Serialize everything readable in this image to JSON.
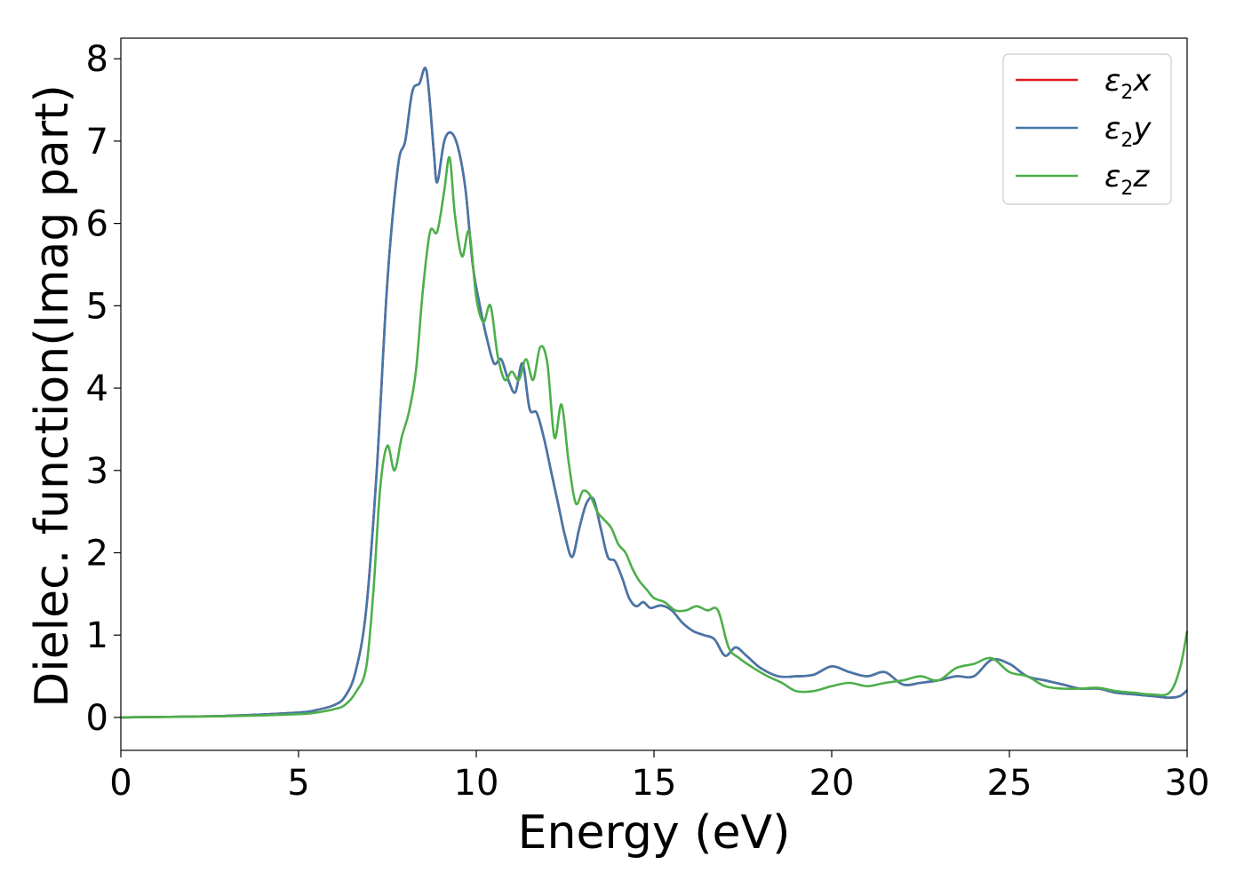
{
  "chart_data": {
    "type": "line",
    "title": "",
    "xlabel": "Energy (eV)",
    "ylabel": "Dielec. function(Imag part)",
    "xlim": [
      0,
      30
    ],
    "ylim": [
      -0.4,
      8.25
    ],
    "xticks": [
      "0",
      "5",
      "10",
      "15",
      "20",
      "25",
      "30"
    ],
    "yticks": [
      "0",
      "1",
      "2",
      "3",
      "4",
      "5",
      "6",
      "7",
      "8"
    ],
    "grid": false,
    "legend_position": "top-right",
    "series": [
      {
        "name": "ε2x",
        "label_parts": {
          "base": "ε",
          "sub": "2",
          "axis": "x"
        },
        "color": "#e41a1c",
        "x": [
          0,
          3,
          5,
          5.5,
          6,
          6.3,
          6.6,
          6.9,
          7.2,
          7.5,
          7.8,
          8.0,
          8.2,
          8.4,
          8.6,
          8.8,
          8.9,
          9.1,
          9.3,
          9.5,
          9.7,
          9.9,
          10.1,
          10.3,
          10.5,
          10.7,
          10.9,
          11.1,
          11.3,
          11.5,
          11.7,
          11.9,
          12.1,
          12.3,
          12.5,
          12.7,
          12.9,
          13.1,
          13.3,
          13.5,
          13.7,
          13.9,
          14.1,
          14.3,
          14.5,
          14.7,
          14.9,
          15.2,
          15.5,
          15.8,
          16.1,
          16.4,
          16.7,
          17.0,
          17.3,
          17.6,
          18.0,
          18.5,
          19.0,
          19.5,
          20.0,
          20.5,
          21.0,
          21.5,
          22.0,
          22.5,
          23.0,
          23.5,
          24.0,
          24.5,
          25.0,
          25.5,
          26.0,
          26.5,
          27.0,
          27.5,
          28.0,
          28.5,
          29.0,
          29.5,
          29.8,
          30.0
        ],
        "y": [
          0.0,
          0.02,
          0.06,
          0.09,
          0.15,
          0.25,
          0.55,
          1.3,
          3.0,
          5.3,
          6.7,
          7.0,
          7.6,
          7.7,
          7.85,
          6.9,
          6.5,
          7.0,
          7.1,
          6.9,
          6.4,
          5.5,
          5.0,
          4.6,
          4.3,
          4.35,
          4.1,
          3.95,
          4.3,
          3.75,
          3.7,
          3.4,
          3.0,
          2.6,
          2.2,
          1.95,
          2.3,
          2.6,
          2.65,
          2.3,
          1.95,
          1.9,
          1.7,
          1.45,
          1.35,
          1.4,
          1.33,
          1.36,
          1.3,
          1.15,
          1.05,
          1.0,
          0.95,
          0.75,
          0.85,
          0.75,
          0.6,
          0.5,
          0.5,
          0.52,
          0.62,
          0.55,
          0.5,
          0.55,
          0.4,
          0.42,
          0.45,
          0.5,
          0.5,
          0.7,
          0.65,
          0.5,
          0.45,
          0.4,
          0.35,
          0.35,
          0.3,
          0.28,
          0.26,
          0.24,
          0.26,
          0.33
        ]
      },
      {
        "name": "ε2y",
        "label_parts": {
          "base": "ε",
          "sub": "2",
          "axis": "y"
        },
        "color": "#4477aa",
        "x": [
          0,
          3,
          5,
          5.5,
          6,
          6.3,
          6.6,
          6.9,
          7.2,
          7.5,
          7.8,
          8.0,
          8.2,
          8.4,
          8.6,
          8.8,
          8.9,
          9.1,
          9.3,
          9.5,
          9.7,
          9.9,
          10.1,
          10.3,
          10.5,
          10.7,
          10.9,
          11.1,
          11.3,
          11.5,
          11.7,
          11.9,
          12.1,
          12.3,
          12.5,
          12.7,
          12.9,
          13.1,
          13.3,
          13.5,
          13.7,
          13.9,
          14.1,
          14.3,
          14.5,
          14.7,
          14.9,
          15.2,
          15.5,
          15.8,
          16.1,
          16.4,
          16.7,
          17.0,
          17.3,
          17.6,
          18.0,
          18.5,
          19.0,
          19.5,
          20.0,
          20.5,
          21.0,
          21.5,
          22.0,
          22.5,
          23.0,
          23.5,
          24.0,
          24.5,
          25.0,
          25.5,
          26.0,
          26.5,
          27.0,
          27.5,
          28.0,
          28.5,
          29.0,
          29.5,
          29.8,
          30.0
        ],
        "y": [
          0.0,
          0.02,
          0.06,
          0.09,
          0.15,
          0.25,
          0.55,
          1.3,
          3.0,
          5.3,
          6.7,
          7.0,
          7.6,
          7.7,
          7.85,
          6.9,
          6.5,
          7.0,
          7.1,
          6.9,
          6.4,
          5.5,
          5.0,
          4.6,
          4.3,
          4.35,
          4.1,
          3.95,
          4.3,
          3.75,
          3.7,
          3.4,
          3.0,
          2.6,
          2.2,
          1.95,
          2.3,
          2.6,
          2.65,
          2.3,
          1.95,
          1.9,
          1.7,
          1.45,
          1.35,
          1.4,
          1.33,
          1.36,
          1.3,
          1.15,
          1.05,
          1.0,
          0.95,
          0.75,
          0.85,
          0.75,
          0.6,
          0.5,
          0.5,
          0.52,
          0.62,
          0.55,
          0.5,
          0.55,
          0.4,
          0.42,
          0.45,
          0.5,
          0.5,
          0.7,
          0.65,
          0.5,
          0.45,
          0.4,
          0.35,
          0.35,
          0.3,
          0.28,
          0.26,
          0.24,
          0.26,
          0.33
        ]
      },
      {
        "name": "ε2z",
        "label_parts": {
          "base": "ε",
          "sub": "2",
          "axis": "z"
        },
        "color": "#4daf4a",
        "x": [
          0,
          3,
          5,
          5.5,
          6,
          6.3,
          6.6,
          6.9,
          7.1,
          7.3,
          7.5,
          7.7,
          7.9,
          8.1,
          8.3,
          8.5,
          8.7,
          8.9,
          9.1,
          9.25,
          9.4,
          9.6,
          9.8,
          10.0,
          10.2,
          10.4,
          10.6,
          10.8,
          11.0,
          11.2,
          11.4,
          11.6,
          11.8,
          12.0,
          12.2,
          12.4,
          12.6,
          12.8,
          13.0,
          13.2,
          13.4,
          13.6,
          13.8,
          14.0,
          14.2,
          14.4,
          14.6,
          14.8,
          15.0,
          15.3,
          15.6,
          15.9,
          16.2,
          16.5,
          16.8,
          17.1,
          17.4,
          17.8,
          18.2,
          18.6,
          19.0,
          19.5,
          20.0,
          20.5,
          21.0,
          21.5,
          22.0,
          22.5,
          23.0,
          23.5,
          24.0,
          24.5,
          25.0,
          25.5,
          26.0,
          26.5,
          27.0,
          27.5,
          28.0,
          28.5,
          29.0,
          29.5,
          29.8,
          30.0
        ],
        "y": [
          0.0,
          0.015,
          0.04,
          0.06,
          0.1,
          0.15,
          0.3,
          0.6,
          1.5,
          2.8,
          3.3,
          3.0,
          3.4,
          3.7,
          4.2,
          5.2,
          5.9,
          5.9,
          6.4,
          6.8,
          6.1,
          5.6,
          5.9,
          5.1,
          4.8,
          5.0,
          4.4,
          4.1,
          4.2,
          4.1,
          4.35,
          4.1,
          4.5,
          4.3,
          3.4,
          3.8,
          3.1,
          2.6,
          2.75,
          2.7,
          2.5,
          2.4,
          2.3,
          2.1,
          2.0,
          1.8,
          1.65,
          1.55,
          1.45,
          1.4,
          1.3,
          1.3,
          1.35,
          1.3,
          1.3,
          0.85,
          0.72,
          0.6,
          0.5,
          0.42,
          0.32,
          0.32,
          0.38,
          0.42,
          0.38,
          0.42,
          0.45,
          0.5,
          0.45,
          0.6,
          0.65,
          0.72,
          0.55,
          0.5,
          0.38,
          0.35,
          0.35,
          0.36,
          0.32,
          0.3,
          0.28,
          0.3,
          0.6,
          1.05
        ]
      }
    ]
  }
}
